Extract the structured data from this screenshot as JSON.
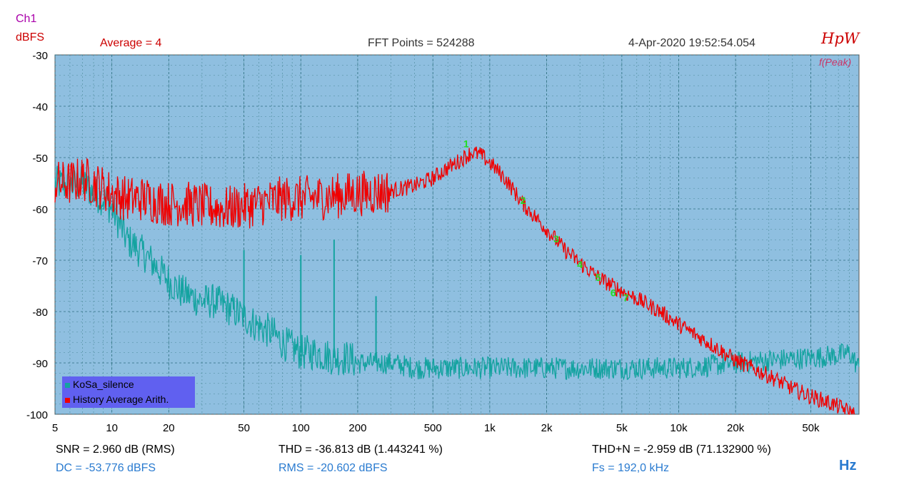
{
  "header": {
    "channel": "Ch1",
    "unit": "dBFS",
    "average": "Average = 4",
    "fft_points": "FFT Points = 524288",
    "timestamp": "4-Apr-2020 19:52:54.054",
    "logo": "HpW",
    "peak_mode": "f(Peak)"
  },
  "footer": {
    "snr": "SNR = 2.960 dB (RMS)",
    "thd": "THD = -36.813 dB (1.443241 %)",
    "thdn": "THD+N = -2.959 dB (71.132900 %)",
    "dc": "DC = -53.776 dBFS",
    "rms": "RMS = -20.602 dBFS",
    "fs": "Fs = 192,0 kHz",
    "x_unit": "Hz"
  },
  "colors": {
    "plot_bg": "#8fbfe0",
    "grid_major": "#2c6f7f",
    "grid_minor": "#4a8a98",
    "series_silence": "#14a3a0",
    "series_history": "#f00000",
    "legend_bg": "#6060f0",
    "harmonic_marker": "#22dd22",
    "ylabel_unit": "#cc0000",
    "channel_label": "#aa00aa",
    "average_label": "#cc0000",
    "info_label": "#333333",
    "blue_stats": "#2a7bd0"
  },
  "chart_data": {
    "type": "line",
    "xscale": "log",
    "xlim": [
      5,
      90000
    ],
    "ylim": [
      -100,
      -30
    ],
    "grid": true,
    "legend_position": "bottom-left",
    "xticks": [
      5,
      10,
      20,
      50,
      100,
      200,
      500,
      1000,
      2000,
      5000,
      10000,
      20000,
      50000
    ],
    "xtick_labels": [
      "5",
      "10",
      "20",
      "50",
      "100",
      "200",
      "500",
      "1k",
      "2k",
      "5k",
      "10k",
      "20k",
      "50k"
    ],
    "yticks": [
      -30,
      -40,
      -50,
      -60,
      -70,
      -80,
      -90,
      -100
    ],
    "ytick_labels": [
      "-30",
      "-40",
      "-50",
      "-60",
      "-70",
      "-80",
      "-90",
      "-100"
    ],
    "series": [
      {
        "name": "KoSa_silence",
        "color": "#14a3a0",
        "x": [
          5,
          6,
          7,
          8,
          9,
          10,
          11,
          12,
          13,
          15,
          17,
          20,
          23,
          26,
          30,
          35,
          40,
          45,
          50,
          60,
          70,
          80,
          90,
          100,
          120,
          150,
          180,
          200,
          250,
          300,
          400,
          500,
          700,
          1000,
          2000,
          3000,
          5000,
          7000,
          10000,
          15000,
          20000,
          30000,
          50000,
          70000,
          80000,
          90000
        ],
        "y": [
          -55,
          -55.5,
          -55,
          -57,
          -58,
          -60,
          -63,
          -66,
          -67,
          -69,
          -71,
          -74,
          -76,
          -77,
          -78,
          -78,
          -79,
          -80,
          -81,
          -83,
          -84,
          -86,
          -87,
          -88,
          -88,
          -89,
          -89,
          -90,
          -90,
          -90,
          -91,
          -91,
          -91,
          -91,
          -91,
          -91,
          -91,
          -91,
          -91,
          -90.5,
          -90,
          -89.5,
          -89,
          -88.5,
          -88,
          -91
        ]
      },
      {
        "name": "History Average Arith.",
        "color": "#f00000",
        "x": [
          5,
          6,
          7,
          8,
          9,
          10,
          12,
          15,
          20,
          25,
          30,
          40,
          50,
          60,
          70,
          80,
          100,
          150,
          200,
          300,
          400,
          500,
          600,
          700,
          800,
          900,
          1000,
          1200,
          1500,
          2000,
          2500,
          3000,
          3500,
          4000,
          5000,
          6000,
          8000,
          10000,
          15000,
          20000,
          30000,
          40000,
          50000,
          60000,
          70000,
          80000,
          85000
        ],
        "y": [
          -55,
          -55,
          -54,
          -55,
          -56,
          -57,
          -58,
          -58,
          -59,
          -59,
          -59.5,
          -60,
          -59.5,
          -59,
          -58.5,
          -58,
          -58,
          -57.5,
          -57,
          -56.5,
          -55.5,
          -54,
          -52,
          -50.5,
          -49,
          -49.5,
          -51,
          -54,
          -59,
          -64,
          -68,
          -70.5,
          -72.5,
          -74,
          -76,
          -77.5,
          -80,
          -82.5,
          -86.5,
          -89.5,
          -92.5,
          -95,
          -96.5,
          -97.5,
          -98.5,
          -99.5,
          -100
        ]
      }
    ],
    "spikes": [
      {
        "x": 50,
        "y": -68
      },
      {
        "x": 100,
        "y": -69
      },
      {
        "x": 150,
        "y": -66
      },
      {
        "x": 250,
        "y": -77
      }
    ],
    "harmonic_markers": [
      {
        "label": "1",
        "x": 750,
        "y": -48
      },
      {
        "label": "2",
        "x": 1500,
        "y": -59
      },
      {
        "label": "3",
        "x": 2250,
        "y": -66.5
      },
      {
        "label": "4",
        "x": 3000,
        "y": -71.5
      },
      {
        "label": "5",
        "x": 3750,
        "y": -74
      },
      {
        "label": "6",
        "x": 4500,
        "y": -77
      },
      {
        "label": "7",
        "x": 5250,
        "y": -78
      }
    ]
  }
}
